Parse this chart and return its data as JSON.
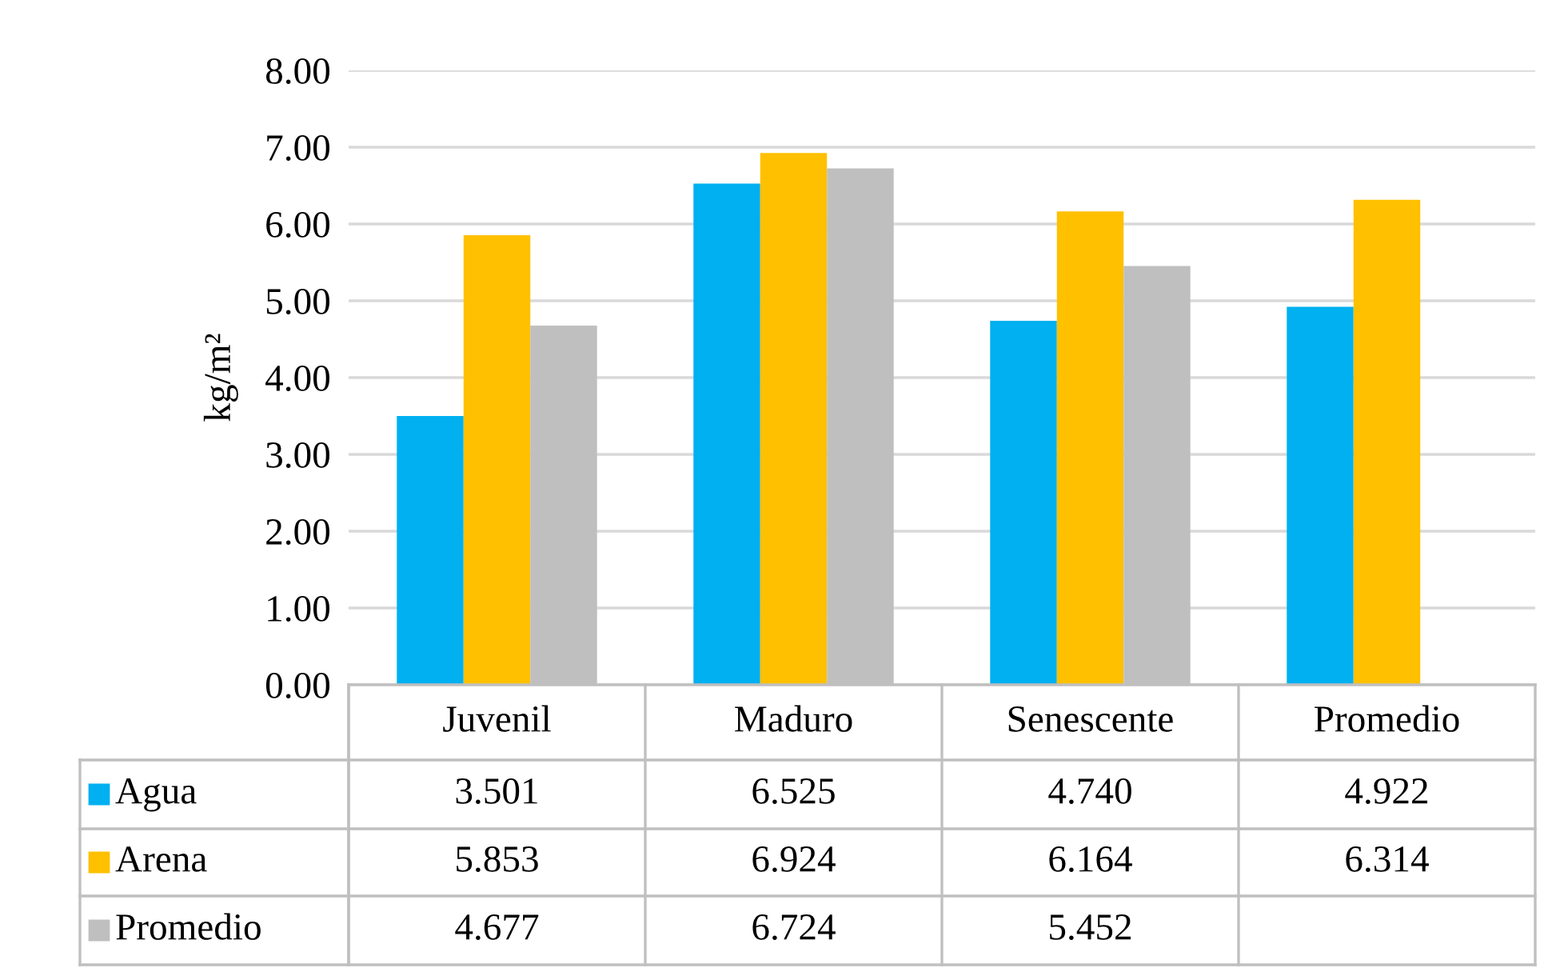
{
  "chart_data": {
    "type": "bar",
    "ylabel": "kg/m²",
    "categories": [
      "Juvenil",
      "Maduro",
      "Senescente",
      "Promedio"
    ],
    "series": [
      {
        "name": "Agua",
        "color": "#00b0f0",
        "values": [
          3.501,
          6.525,
          4.74,
          4.922
        ],
        "value_labels": [
          "3.501",
          "6.525",
          "4.740",
          "4.922"
        ]
      },
      {
        "name": "Arena",
        "color": "#ffc000",
        "values": [
          5.853,
          6.924,
          6.164,
          6.314
        ],
        "value_labels": [
          "5.853",
          "6.924",
          "6.164",
          "6.314"
        ]
      },
      {
        "name": "Promedio",
        "color": "#bfbfbf",
        "values": [
          4.677,
          6.724,
          5.452,
          null
        ],
        "value_labels": [
          "4.677",
          "6.724",
          "5.452",
          null
        ]
      }
    ],
    "ylim": [
      0,
      8
    ],
    "yticks": [
      {
        "value": 0,
        "label": "0.00"
      },
      {
        "value": 1,
        "label": "1.00"
      },
      {
        "value": 2,
        "label": "2.00"
      },
      {
        "value": 3,
        "label": "3.00"
      },
      {
        "value": 4,
        "label": "4.00"
      },
      {
        "value": 5,
        "label": "5.00"
      },
      {
        "value": 6,
        "label": "6.00"
      },
      {
        "value": 7,
        "label": "7.00"
      },
      {
        "value": 8,
        "label": "8.00"
      }
    ],
    "grid": "y",
    "legend": "bottom"
  }
}
